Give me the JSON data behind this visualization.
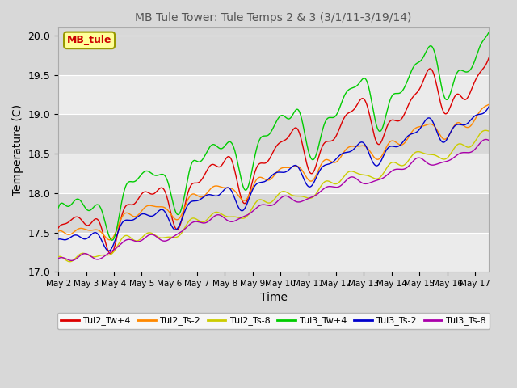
{
  "title": "MB Tule Tower: Tule Temps 2 & 3 (3/1/11-3/19/14)",
  "xlabel": "Time",
  "ylabel": "Temperature (C)",
  "ylim": [
    17.0,
    20.1
  ],
  "xlim_days": 15.5,
  "yticks": [
    17.0,
    17.5,
    18.0,
    18.5,
    19.0,
    19.5,
    20.0
  ],
  "xtick_labels": [
    "May 2",
    "May 3",
    "May 4",
    "May 5",
    "May 6",
    "May 7",
    "May 8",
    "May 9",
    "May 10",
    "May 11",
    "May 12",
    "May 13",
    "May 14",
    "May 15",
    "May 16",
    "May 17"
  ],
  "legend_labels": [
    "Tul2_Tw+4",
    "Tul2_Ts-2",
    "Tul2_Ts-8",
    "Tul3_Tw+4",
    "Tul3_Ts-2",
    "Tul3_Ts-8"
  ],
  "line_colors": [
    "#dd0000",
    "#ff8800",
    "#cccc00",
    "#00cc00",
    "#0000cc",
    "#aa00aa"
  ],
  "background_color": "#d8d8d8",
  "plot_bg_color": "#d8d8d8",
  "label_box_color": "#ffff99",
  "label_box_edge": "#999900",
  "label_text": "MB_tule",
  "label_text_color": "#cc0000",
  "grid_color": "#ffffff",
  "n_points": 1500,
  "seed": 42,
  "figsize": [
    6.4,
    4.8
  ],
  "dpi": 100
}
